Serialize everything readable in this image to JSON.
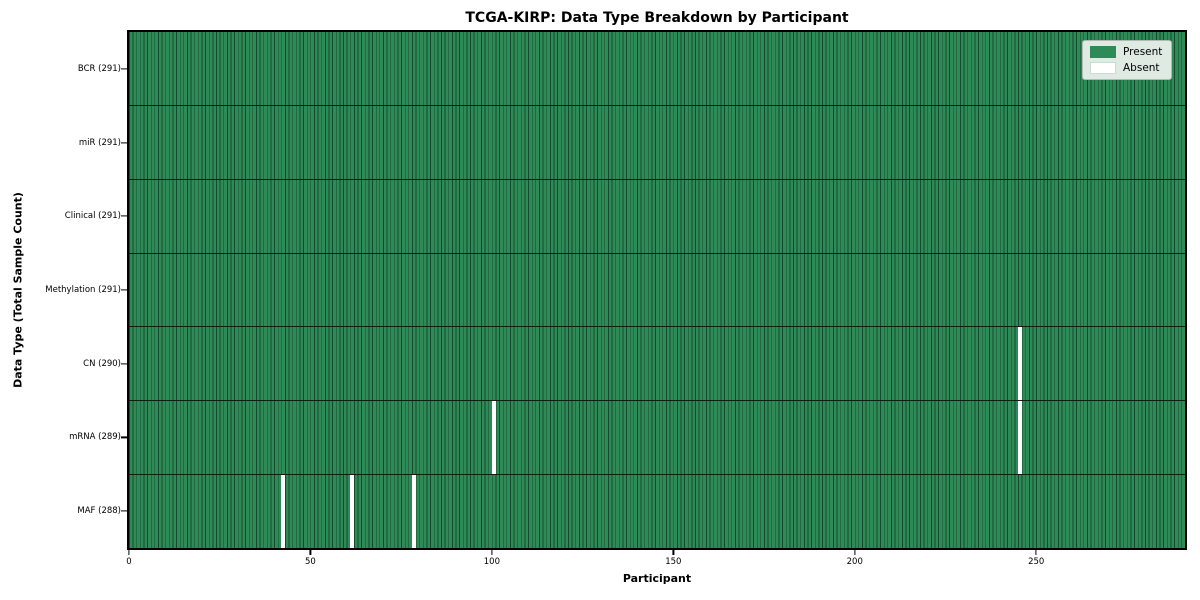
{
  "title": "TCGA-KIRP: Data Type Breakdown by Participant",
  "x_axis": {
    "label": "Participant",
    "tick_values": [
      0,
      50,
      100,
      150,
      200,
      250
    ],
    "range": [
      0,
      291
    ]
  },
  "y_axis": {
    "label": "Data Type (Total Sample Count)"
  },
  "legend": {
    "position": "upper right",
    "items": [
      {
        "label": "Present",
        "color": "#2e8b57"
      },
      {
        "label": "Absent",
        "color": "#ffffff"
      }
    ]
  },
  "chart_data": {
    "type": "heatmap",
    "title": "TCGA-KIRP: Data Type Breakdown by Participant",
    "xlabel": "Participant",
    "ylabel": "Data Type (Total Sample Count)",
    "n_participants": 291,
    "xlim": [
      0,
      291
    ],
    "grid": false,
    "colors": {
      "present": "#2e8b57",
      "absent": "#ffffff",
      "cell_edge": "#0c2618"
    },
    "rows": [
      {
        "label": "BCR (291)",
        "name": "BCR",
        "present_count": 291,
        "absent_indices": []
      },
      {
        "label": "miR (291)",
        "name": "miR",
        "present_count": 291,
        "absent_indices": []
      },
      {
        "label": "Clinical (291)",
        "name": "Clinical",
        "present_count": 291,
        "absent_indices": []
      },
      {
        "label": "Methylation (291)",
        "name": "Methylation",
        "present_count": 291,
        "absent_indices": []
      },
      {
        "label": "CN (290)",
        "name": "CN",
        "present_count": 290,
        "absent_indices": [
          245
        ]
      },
      {
        "label": "mRNA (289)",
        "name": "mRNA",
        "present_count": 289,
        "absent_indices": [
          100,
          245
        ]
      },
      {
        "label": "MAF (288)",
        "name": "MAF",
        "present_count": 288,
        "absent_indices": [
          42,
          61,
          78
        ]
      }
    ]
  }
}
